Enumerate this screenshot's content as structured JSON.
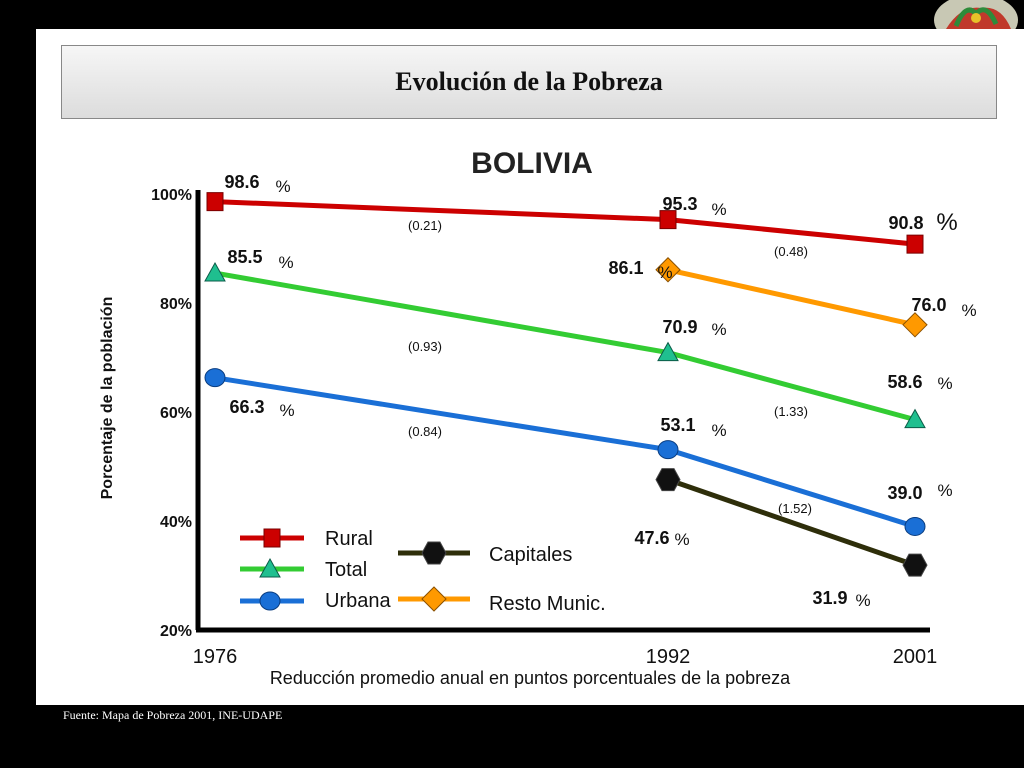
{
  "page": {
    "title": "Evolución de la Pobreza",
    "source": "Fuente: Mapa de Pobreza 2001, INE-UDAPE"
  },
  "chart_data": {
    "type": "line",
    "title": "BOLIVIA",
    "xlabel": "Reducción promedio anual en puntos porcentuales de la pobreza",
    "ylabel": "Porcentaje de la población",
    "x": [
      "1976",
      "1992",
      "2001"
    ],
    "ylim": [
      20,
      100
    ],
    "yticks": [
      "20%",
      "40%",
      "60%",
      "80%",
      "100%"
    ],
    "unit": "%",
    "series": [
      {
        "name": "Rural",
        "color": "#cc0000",
        "marker": "square",
        "points": [
          {
            "x": "1976",
            "y": 98.6,
            "label": "98.6"
          },
          {
            "x": "1992",
            "y": 95.3,
            "label": "95.3"
          },
          {
            "x": "2001",
            "y": 90.8,
            "label": "90.8"
          }
        ],
        "rates": [
          "(0.21)",
          "(0.48)"
        ]
      },
      {
        "name": "Total",
        "color": "#33cc33",
        "marker": "triangle",
        "points": [
          {
            "x": "1976",
            "y": 85.5,
            "label": "85.5"
          },
          {
            "x": "1992",
            "y": 70.9,
            "label": "70.9"
          },
          {
            "x": "2001",
            "y": 58.6,
            "label": "58.6"
          }
        ],
        "rates": [
          "(0.93)",
          "(1.33)"
        ]
      },
      {
        "name": "Urbana",
        "color": "#1a6fd6",
        "marker": "circle",
        "points": [
          {
            "x": "1976",
            "y": 66.3,
            "label": "66.3"
          },
          {
            "x": "1992",
            "y": 53.1,
            "label": "53.1"
          },
          {
            "x": "2001",
            "y": 39.0,
            "label": "39.0"
          }
        ],
        "rates": [
          "(0.84)",
          "(1.52)"
        ]
      },
      {
        "name": "Capitales",
        "color": "#2e2e0a",
        "marker": "hexagon",
        "points": [
          {
            "x": "1992",
            "y": 47.6,
            "label": "47.6"
          },
          {
            "x": "2001",
            "y": 31.9,
            "label": "31.9"
          }
        ],
        "rates": []
      },
      {
        "name": "Resto Munic.",
        "color": "#ff9900",
        "marker": "diamond",
        "points": [
          {
            "x": "1992",
            "y": 86.1,
            "label": "86.1"
          },
          {
            "x": "2001",
            "y": 76.0,
            "label": "76.0"
          }
        ],
        "rates": []
      }
    ]
  }
}
